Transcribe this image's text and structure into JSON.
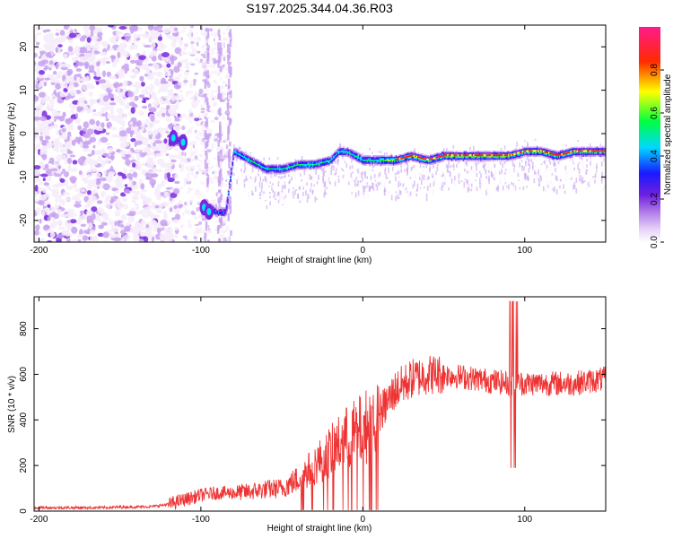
{
  "chart_data": [
    {
      "type": "heatmap",
      "title": "S197.2025.344.04.36.R03",
      "xlabel": "Height of straight line (km)",
      "ylabel": "Frequency (Hz)",
      "xlim": [
        -203,
        150
      ],
      "ylim": [
        -25,
        25
      ],
      "xticks": [
        "-200",
        "-100",
        "0",
        "100"
      ],
      "yticks": [
        "-20",
        "-10",
        "0",
        "10",
        "20"
      ],
      "colorbar": {
        "label": "Normalized spectral amplitude",
        "range": [
          0,
          1
        ],
        "ticks": [
          "0.0",
          "0.2",
          "0.4",
          "0.6",
          "0.8"
        ],
        "colors": [
          "#f6ecfa",
          "#c8a2f0",
          "#7a28e0",
          "#1a1aff",
          "#00e5ff",
          "#00ff00",
          "#ffff00",
          "#ff2200",
          "#ff1a8c"
        ]
      },
      "ridge": {
        "description": "dominant frequency vs height",
        "x": [
          -120,
          -110,
          -100,
          -95,
          -90,
          -85,
          -80,
          -70,
          -60,
          -50,
          -40,
          -30,
          -20,
          -15,
          -10,
          -5,
          0,
          10,
          20,
          30,
          40,
          50,
          60,
          70,
          80,
          90,
          100,
          110,
          120,
          130,
          140,
          150
        ],
        "y": [
          -2,
          -1,
          -18,
          -17,
          -18,
          -18,
          -4,
          -6,
          -8,
          -8,
          -7,
          -7,
          -6,
          -4,
          -4,
          -5,
          -6,
          -6,
          -6,
          -5,
          -6,
          -5,
          -5,
          -5,
          -5,
          -5,
          -4,
          -4,
          -5,
          -4,
          -4,
          -4
        ]
      }
    },
    {
      "type": "line",
      "xlabel": "Height of straight line (km)",
      "ylabel": "SNR (10 * v/v)",
      "xlim": [
        -203,
        150
      ],
      "ylim": [
        0,
        940
      ],
      "xticks": [
        "-200",
        "-100",
        "0",
        "100"
      ],
      "yticks": [
        "0",
        "200",
        "400",
        "600",
        "800"
      ],
      "series": [
        {
          "name": "SNR",
          "color": "#ee3333",
          "x": [
            -203,
            -190,
            -180,
            -170,
            -160,
            -150,
            -140,
            -130,
            -120,
            -110,
            -100,
            -90,
            -80,
            -70,
            -60,
            -50,
            -40,
            -30,
            -20,
            -10,
            0,
            10,
            20,
            30,
            40,
            50,
            60,
            70,
            80,
            90,
            100,
            110,
            120,
            130,
            140,
            150
          ],
          "y": [
            15,
            15,
            15,
            15,
            15,
            18,
            18,
            20,
            30,
            50,
            70,
            80,
            80,
            85,
            95,
            100,
            140,
            200,
            260,
            320,
            360,
            420,
            530,
            580,
            600,
            600,
            590,
            580,
            570,
            560,
            560,
            560,
            560,
            560,
            570,
            580
          ]
        }
      ]
    }
  ]
}
